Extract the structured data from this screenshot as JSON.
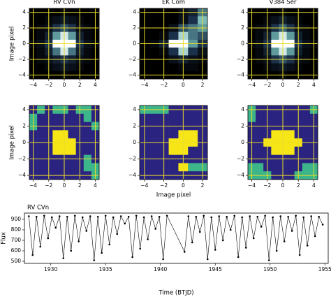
{
  "chart_data": [
    {
      "type": "heatmap",
      "title": "RV CVn",
      "y_label": "Image pixel",
      "colormap": [
        "#000000",
        "#1e3552",
        "#6fb5b0",
        "#ffffff"
      ],
      "grid": true,
      "grid_color": "#e8dc2a",
      "xlim": [
        -4.5,
        4.5
      ],
      "ylim": [
        -4.5,
        4.5
      ],
      "xticks": [
        {
          "value": -4,
          "label": "−4"
        },
        {
          "value": -2,
          "label": "−2"
        },
        0,
        2,
        4
      ],
      "yticks": [
        {
          "value": -4,
          "label": "−4"
        },
        {
          "value": -2,
          "label": "−2"
        },
        0,
        2,
        4
      ],
      "values": [
        [
          0,
          0,
          0,
          0,
          0.05,
          0,
          0,
          0,
          0
        ],
        [
          0,
          0,
          0.05,
          0.1,
          0.15,
          0.1,
          0.05,
          0,
          0
        ],
        [
          0,
          0.05,
          0.1,
          0.3,
          0.4,
          0.3,
          0.1,
          0.05,
          0
        ],
        [
          0,
          0.05,
          0.2,
          0.6,
          0.9,
          0.6,
          0.2,
          0.05,
          0
        ],
        [
          0.05,
          0.1,
          0.3,
          1,
          1,
          1,
          0.3,
          0.1,
          0.05
        ],
        [
          0,
          0.05,
          0.2,
          0.5,
          0.9,
          0.5,
          0.2,
          0.05,
          0
        ],
        [
          0,
          0.05,
          0.1,
          0.2,
          0.3,
          0.2,
          0.1,
          0.05,
          0
        ],
        [
          0,
          0,
          0.05,
          0.1,
          0.15,
          0.1,
          0.05,
          0,
          0
        ],
        [
          0,
          0,
          0,
          0,
          0.05,
          0,
          0,
          0,
          0
        ]
      ]
    },
    {
      "type": "heatmap",
      "title": "EK Com",
      "colormap": [
        "#000000",
        "#1e3552",
        "#6fb5b0",
        "#ffffff"
      ],
      "grid": true,
      "grid_color": "#e8dc2a",
      "xlim": [
        -4.5,
        2.5
      ],
      "ylim": [
        -4.5,
        4.5
      ],
      "xticks": [
        {
          "value": -4,
          "label": "−4"
        },
        {
          "value": -2,
          "label": "−2"
        },
        0,
        2
      ],
      "yticks": [
        {
          "value": -4,
          "label": "−4"
        },
        {
          "value": -2,
          "label": "−2"
        },
        0,
        2,
        4
      ],
      "values": [
        [
          0,
          0,
          0,
          0,
          0.1,
          0.2,
          0.5
        ],
        [
          0,
          0,
          0,
          0,
          0.1,
          0.3,
          0.7
        ],
        [
          0,
          0,
          0,
          0.1,
          0.4,
          0.5,
          0.6
        ],
        [
          0,
          0,
          0.05,
          0.3,
          0.8,
          0.5,
          0.4
        ],
        [
          0,
          0.05,
          0.2,
          1,
          1,
          0.6,
          0.3
        ],
        [
          0,
          0,
          0.05,
          0.3,
          0.8,
          0.3,
          0.1
        ],
        [
          0,
          0,
          0,
          0.1,
          0.2,
          0.1,
          0.05
        ],
        [
          0,
          0,
          0,
          0,
          0.05,
          0.05,
          0
        ],
        [
          0,
          0,
          0,
          0,
          0,
          0,
          0
        ]
      ]
    },
    {
      "type": "heatmap",
      "title": "V384 Ser",
      "colormap": [
        "#000000",
        "#1e3552",
        "#6fb5b0",
        "#ffffff"
      ],
      "grid": true,
      "grid_color": "#e8dc2a",
      "xlim": [
        -4.5,
        4.5
      ],
      "ylim": [
        -4.5,
        4.5
      ],
      "xticks": [
        {
          "value": -4,
          "label": "−4"
        },
        {
          "value": -2,
          "label": "−2"
        },
        0,
        2,
        4
      ],
      "yticks": [
        {
          "value": -4,
          "label": "−4"
        },
        {
          "value": -2,
          "label": "−2"
        },
        0,
        2,
        4
      ],
      "values": [
        [
          0,
          0,
          0,
          0,
          0.05,
          0,
          0,
          0,
          0
        ],
        [
          0,
          0,
          0.05,
          0.1,
          0.2,
          0.1,
          0.05,
          0,
          0
        ],
        [
          0,
          0.05,
          0.1,
          0.3,
          0.45,
          0.3,
          0.1,
          0.05,
          0
        ],
        [
          0,
          0.05,
          0.2,
          0.6,
          0.9,
          0.6,
          0.2,
          0.05,
          0
        ],
        [
          0.05,
          0.1,
          0.3,
          1,
          1,
          1,
          0.3,
          0.1,
          0.05
        ],
        [
          0,
          0.05,
          0.2,
          0.6,
          0.9,
          0.6,
          0.2,
          0.05,
          0
        ],
        [
          0,
          0.05,
          0.1,
          0.3,
          0.4,
          0.3,
          0.1,
          0.05,
          0
        ],
        [
          0,
          0,
          0.05,
          0.1,
          0.15,
          0.1,
          0.05,
          0,
          0
        ],
        [
          0,
          0,
          0,
          0,
          0.05,
          0,
          0,
          0,
          0
        ]
      ]
    },
    {
      "type": "mask",
      "y_label": "Image pixel",
      "colors": [
        "#2b2380",
        "#3cb58a",
        "#f7e617"
      ],
      "grid": true,
      "grid_color": "#e8dc2a",
      "xlim": [
        -4.5,
        4.5
      ],
      "ylim": [
        -4.5,
        4.5
      ],
      "xticks": [
        {
          "value": -4,
          "label": "−4"
        },
        {
          "value": -2,
          "label": "−2"
        },
        0,
        2,
        4
      ],
      "yticks": [
        {
          "value": -4,
          "label": "−4"
        },
        {
          "value": -2,
          "label": "−2"
        },
        0,
        2,
        4
      ],
      "values": [
        [
          0,
          1,
          0,
          1,
          1,
          0,
          1,
          1,
          0
        ],
        [
          1,
          0,
          0,
          0,
          0,
          0,
          0,
          1,
          0
        ],
        [
          1,
          0,
          0,
          0,
          0,
          0,
          0,
          0,
          1
        ],
        [
          0,
          0,
          0,
          2,
          2,
          0,
          0,
          0,
          0
        ],
        [
          0,
          0,
          0,
          2,
          2,
          2,
          0,
          0,
          0
        ],
        [
          0,
          0,
          0,
          2,
          2,
          2,
          0,
          0,
          0
        ],
        [
          0,
          0,
          0,
          0,
          0,
          0,
          0,
          1,
          0
        ],
        [
          0,
          0,
          0,
          0,
          0,
          0,
          0,
          1,
          1
        ],
        [
          0,
          0,
          0,
          0,
          0,
          0,
          0,
          0,
          1
        ]
      ]
    },
    {
      "type": "mask",
      "x_label": "Image pixel",
      "colors": [
        "#2b2380",
        "#3cb58a",
        "#f7e617"
      ],
      "grid": true,
      "grid_color": "#e8dc2a",
      "xlim": [
        -4.5,
        2.5
      ],
      "ylim": [
        -4.5,
        4.5
      ],
      "xticks": [
        {
          "value": -4,
          "label": "−4"
        },
        {
          "value": -2,
          "label": "−2"
        },
        0,
        2
      ],
      "yticks": [
        {
          "value": -4,
          "label": "−4"
        },
        {
          "value": -2,
          "label": "−2"
        },
        0,
        2,
        4
      ],
      "values": [
        [
          1,
          1,
          1,
          0,
          0,
          0,
          0
        ],
        [
          0,
          0,
          0,
          0,
          0,
          0,
          0
        ],
        [
          0,
          0,
          0,
          0,
          0,
          0,
          0
        ],
        [
          0,
          0,
          0,
          0,
          2,
          2,
          0
        ],
        [
          0,
          0,
          0,
          2,
          2,
          2,
          0
        ],
        [
          0,
          0,
          0,
          2,
          2,
          0,
          0
        ],
        [
          0,
          0,
          0,
          0,
          0,
          0,
          0
        ],
        [
          0,
          0,
          0,
          0,
          2,
          1,
          1
        ],
        [
          0,
          0,
          0,
          0,
          0,
          0,
          0
        ]
      ]
    },
    {
      "type": "mask",
      "colors": [
        "#2b2380",
        "#3cb58a",
        "#f7e617"
      ],
      "grid": true,
      "grid_color": "#e8dc2a",
      "xlim": [
        -4.5,
        4.5
      ],
      "ylim": [
        -4.5,
        4.5
      ],
      "xticks": [
        {
          "value": -4,
          "label": "−4"
        },
        {
          "value": -2,
          "label": "−2"
        },
        0,
        2,
        4
      ],
      "yticks": [
        {
          "value": -4,
          "label": "−4"
        },
        {
          "value": -2,
          "label": "−2"
        },
        0,
        2,
        4
      ],
      "values": [
        [
          1,
          0,
          0,
          0,
          0,
          0,
          0,
          0,
          1
        ],
        [
          1,
          0,
          0,
          0,
          0,
          0,
          0,
          0,
          0
        ],
        [
          0,
          0,
          0,
          0,
          0,
          0,
          0,
          0,
          0
        ],
        [
          0,
          0,
          0,
          2,
          2,
          2,
          0,
          0,
          0
        ],
        [
          0,
          0,
          2,
          2,
          2,
          2,
          2,
          0,
          0
        ],
        [
          0,
          0,
          0,
          2,
          2,
          2,
          0,
          0,
          0
        ],
        [
          0,
          0,
          0,
          0,
          0,
          0,
          0,
          0,
          0
        ],
        [
          1,
          1,
          0,
          0,
          0,
          0,
          0,
          1,
          1
        ],
        [
          1,
          1,
          1,
          0,
          0,
          0,
          1,
          1,
          1
        ]
      ]
    },
    {
      "type": "line",
      "title": "RV CVn",
      "x_label": "Time (BTJD)",
      "y_label": "Flux",
      "color": "#000000",
      "xlim": [
        1927.6,
        1955.3
      ],
      "ylim": [
        480,
        960
      ],
      "xticks": [
        1930,
        1935,
        1940,
        1945,
        1950,
        1955
      ],
      "yticks": [
        500,
        600,
        700,
        800,
        900
      ],
      "x": [
        1928.0,
        1928.35,
        1928.7,
        1929.05,
        1929.4,
        1929.75,
        1930.1,
        1930.45,
        1930.8,
        1931.15,
        1931.5,
        1931.85,
        1932.2,
        1932.55,
        1932.9,
        1933.25,
        1933.6,
        1933.95,
        1934.3,
        1934.65,
        1935.0,
        1935.35,
        1935.7,
        1936.05,
        1936.4,
        1936.75,
        1937.1,
        1937.45,
        1937.8,
        1938.15,
        1938.5,
        1938.85,
        1939.2,
        1939.55,
        1939.9,
        1940.25,
        1940.6,
        1942.2,
        1942.55,
        1942.9,
        1943.25,
        1943.6,
        1943.95,
        1944.3,
        1944.65,
        1945.0,
        1945.35,
        1945.7,
        1946.05,
        1946.4,
        1946.75,
        1947.1,
        1947.45,
        1947.8,
        1948.15,
        1948.5,
        1948.85,
        1949.2,
        1949.55,
        1949.9,
        1950.25,
        1950.6,
        1950.95,
        1951.3,
        1951.65,
        1952.0,
        1952.35,
        1952.7,
        1953.05,
        1953.4,
        1953.75,
        1954.1,
        1954.45,
        1954.8
      ],
      "values": [
        930,
        560,
        925,
        640,
        935,
        720,
        920,
        820,
        930,
        530,
        925,
        600,
        935,
        690,
        920,
        790,
        930,
        510,
        925,
        580,
        935,
        660,
        920,
        760,
        930,
        860,
        925,
        540,
        935,
        620,
        920,
        710,
        930,
        810,
        925,
        520,
        935,
        590,
        930,
        680,
        925,
        780,
        935,
        520,
        920,
        610,
        930,
        700,
        925,
        800,
        935,
        540,
        920,
        630,
        930,
        720,
        925,
        830,
        935,
        510,
        920,
        600,
        930,
        690,
        925,
        790,
        935,
        560,
        920,
        650,
        930,
        740,
        925,
        850
      ]
    }
  ]
}
